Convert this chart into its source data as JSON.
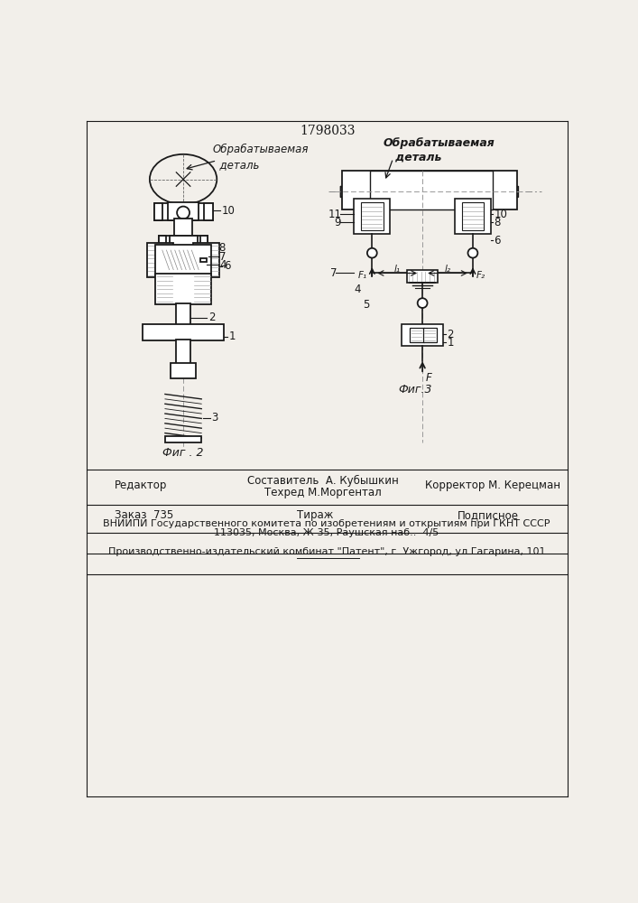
{
  "title": "1798033",
  "bg_color": "#f2efea",
  "line_color": "#1a1a1a",
  "fig2_label": "Фиг . 2",
  "fig3_label": "Фиг.3",
  "label_obrab_fig2": "Обрабатываемая\n  деталь",
  "label_obrab_fig3": "Обрабатываемая\n   деталь",
  "footer_editor": "Редактор",
  "footer_comp": "Составитель  А. Кубышкин",
  "footer_tech": "Техред М.Моргентал",
  "footer_corr": "Корректор М. Керецман",
  "footer_order": "Заказ  735",
  "footer_tir": "Тираж",
  "footer_sub": "Подписное",
  "footer_vniip": "ВНИИПИ Государственного комитета по изобретениям и открытиям при ГКНТ СССР",
  "footer_addr": "113035, Москва, Ж-35, Раушская наб..  4/5",
  "footer_patent": "Производственно-издательский комбинат \"Патент\", г. Ужгород, ул.Гагарина, 101"
}
